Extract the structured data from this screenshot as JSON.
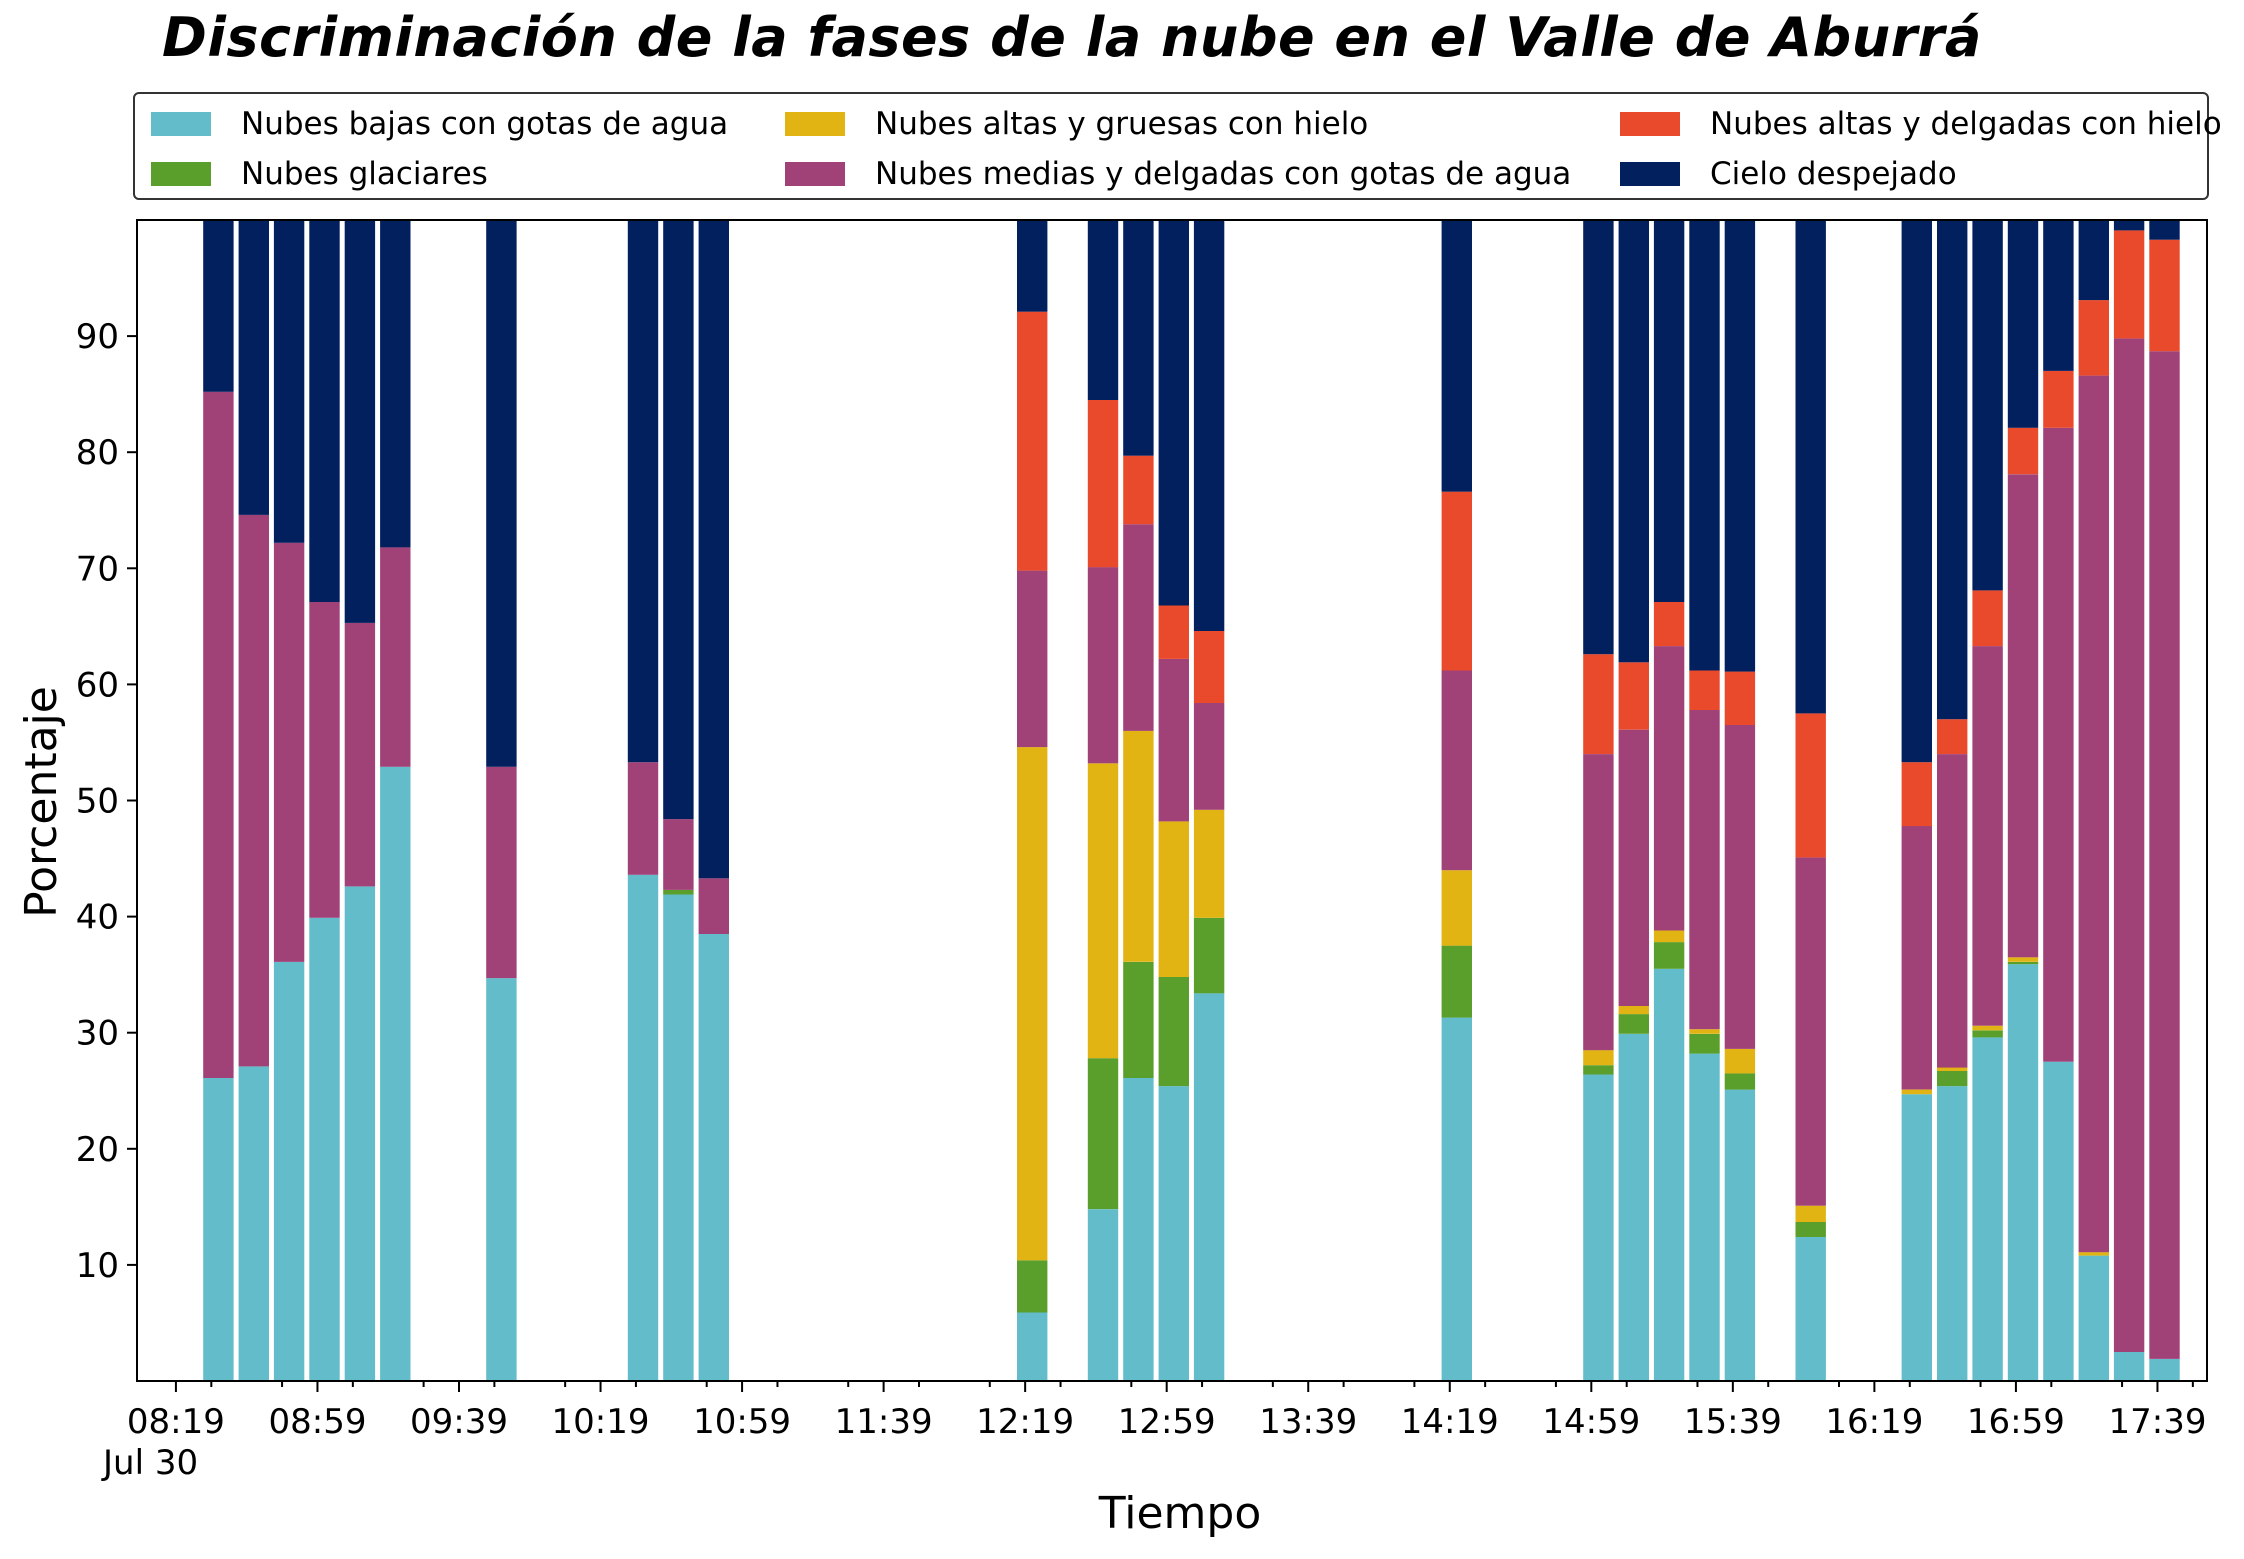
{
  "chart_data": {
    "type": "bar",
    "stacked": true,
    "title": "Discriminación de la fases de la nube en el Valle de Aburrá",
    "xlabel": "Tiempo",
    "ylabel": "Porcentaje",
    "ylim": [
      0,
      100
    ],
    "yticks": [
      10,
      20,
      30,
      40,
      50,
      60,
      70,
      80,
      90
    ],
    "x_range_minutes": [
      488,
      1073
    ],
    "xticks": [
      {
        "minute": 499,
        "label": "08:19"
      },
      {
        "minute": 539,
        "label": "08:59"
      },
      {
        "minute": 579,
        "label": "09:39"
      },
      {
        "minute": 619,
        "label": "10:19"
      },
      {
        "minute": 659,
        "label": "10:59"
      },
      {
        "minute": 699,
        "label": "11:39"
      },
      {
        "minute": 739,
        "label": "12:19"
      },
      {
        "minute": 779,
        "label": "12:59"
      },
      {
        "minute": 819,
        "label": "13:39"
      },
      {
        "minute": 859,
        "label": "14:19"
      },
      {
        "minute": 899,
        "label": "14:59"
      },
      {
        "minute": 939,
        "label": "15:39"
      },
      {
        "minute": 979,
        "label": "16:19"
      },
      {
        "minute": 1019,
        "label": "16:59"
      },
      {
        "minute": 1059,
        "label": "17:39"
      }
    ],
    "date_label": "Jul 30",
    "grid": false,
    "legend_position": "top",
    "series": [
      {
        "name": "Nubes bajas con gotas de agua",
        "color": "#63bcc9"
      },
      {
        "name": "Nubes glaciares",
        "color": "#5a9e2b"
      },
      {
        "name": "Nubes altas y gruesas con hielo",
        "color": "#e1b414"
      },
      {
        "name": "Nubes medias y delgadas con gotas de agua",
        "color": "#a04278"
      },
      {
        "name": "Nubes altas y delgadas con hielo",
        "color": "#ea4a2c"
      },
      {
        "name": "Cielo despejado",
        "color": "#021f5e"
      }
    ],
    "bars": [
      {
        "time": "08:31",
        "minute": 511,
        "values": [
          26.1,
          0,
          0,
          59.1,
          0,
          14.8
        ]
      },
      {
        "time": "08:41",
        "minute": 521,
        "values": [
          27.1,
          0,
          0,
          47.5,
          0,
          25.4
        ]
      },
      {
        "time": "08:51",
        "minute": 531,
        "values": [
          36.1,
          0,
          0,
          36.1,
          0,
          27.8
        ]
      },
      {
        "time": "09:01",
        "minute": 541,
        "values": [
          39.9,
          0,
          0,
          27.2,
          0,
          32.9
        ]
      },
      {
        "time": "09:11",
        "minute": 551,
        "values": [
          42.6,
          0,
          0,
          22.7,
          0,
          34.7
        ]
      },
      {
        "time": "09:21",
        "minute": 561,
        "values": [
          52.9,
          0,
          0,
          18.9,
          0,
          28.2
        ]
      },
      {
        "time": "09:51",
        "minute": 591,
        "values": [
          34.7,
          0,
          0,
          18.2,
          0,
          47.1
        ]
      },
      {
        "time": "10:31",
        "minute": 631,
        "values": [
          43.6,
          0,
          0,
          9.7,
          0,
          46.7
        ]
      },
      {
        "time": "10:41",
        "minute": 641,
        "values": [
          41.9,
          0.4,
          0,
          6.1,
          0,
          51.6
        ]
      },
      {
        "time": "10:51",
        "minute": 651,
        "values": [
          38.5,
          0,
          0,
          4.8,
          0,
          56.7
        ]
      },
      {
        "time": "12:21",
        "minute": 741,
        "values": [
          5.9,
          4.5,
          44.2,
          15.2,
          22.3,
          7.9
        ]
      },
      {
        "time": "12:41",
        "minute": 761,
        "values": [
          14.8,
          13.0,
          25.4,
          16.9,
          14.4,
          15.5
        ]
      },
      {
        "time": "12:51",
        "minute": 771,
        "values": [
          26.1,
          10.0,
          19.9,
          17.8,
          5.9,
          20.3
        ]
      },
      {
        "time": "13:01",
        "minute": 781,
        "values": [
          25.4,
          9.4,
          13.4,
          14.0,
          4.6,
          33.2
        ]
      },
      {
        "time": "13:11",
        "minute": 791,
        "values": [
          33.4,
          6.5,
          9.3,
          9.2,
          6.2,
          35.4
        ]
      },
      {
        "time": "14:21",
        "minute": 861,
        "values": [
          31.3,
          6.2,
          6.5,
          17.2,
          15.4,
          23.4
        ]
      },
      {
        "time": "15:01",
        "minute": 901,
        "values": [
          26.4,
          0.8,
          1.3,
          25.5,
          8.6,
          37.4
        ]
      },
      {
        "time": "15:11",
        "minute": 911,
        "values": [
          29.9,
          1.7,
          0.7,
          23.8,
          5.8,
          38.1
        ]
      },
      {
        "time": "15:21",
        "minute": 921,
        "values": [
          35.5,
          2.3,
          1.0,
          24.5,
          3.8,
          32.9
        ]
      },
      {
        "time": "15:31",
        "minute": 931,
        "values": [
          28.2,
          1.7,
          0.4,
          27.5,
          3.4,
          38.8
        ]
      },
      {
        "time": "15:41",
        "minute": 941,
        "values": [
          25.1,
          1.4,
          2.1,
          27.9,
          4.6,
          38.9
        ]
      },
      {
        "time": "16:01",
        "minute": 961,
        "values": [
          12.4,
          1.3,
          1.4,
          30.0,
          12.4,
          42.5
        ]
      },
      {
        "time": "16:31",
        "minute": 991,
        "values": [
          24.7,
          0,
          0.4,
          22.7,
          5.5,
          46.7
        ]
      },
      {
        "time": "16:41",
        "minute": 1001,
        "values": [
          25.4,
          1.3,
          0.3,
          27.0,
          3.0,
          43.0
        ]
      },
      {
        "time": "16:51",
        "minute": 1011,
        "values": [
          29.6,
          0.6,
          0.4,
          32.7,
          4.8,
          31.9
        ]
      },
      {
        "time": "17:01",
        "minute": 1021,
        "values": [
          35.9,
          0.2,
          0.4,
          41.6,
          4.0,
          17.9
        ]
      },
      {
        "time": "17:11",
        "minute": 1031,
        "values": [
          27.5,
          0,
          0,
          54.6,
          4.9,
          13.0
        ]
      },
      {
        "time": "17:21",
        "minute": 1041,
        "values": [
          10.8,
          0,
          0.3,
          75.5,
          6.5,
          6.9
        ]
      },
      {
        "time": "17:31",
        "minute": 1051,
        "values": [
          2.5,
          0,
          0,
          87.3,
          9.3,
          0.9
        ]
      },
      {
        "time": "17:41",
        "minute": 1061,
        "values": [
          1.9,
          0,
          0,
          86.8,
          9.6,
          1.7
        ]
      }
    ]
  }
}
